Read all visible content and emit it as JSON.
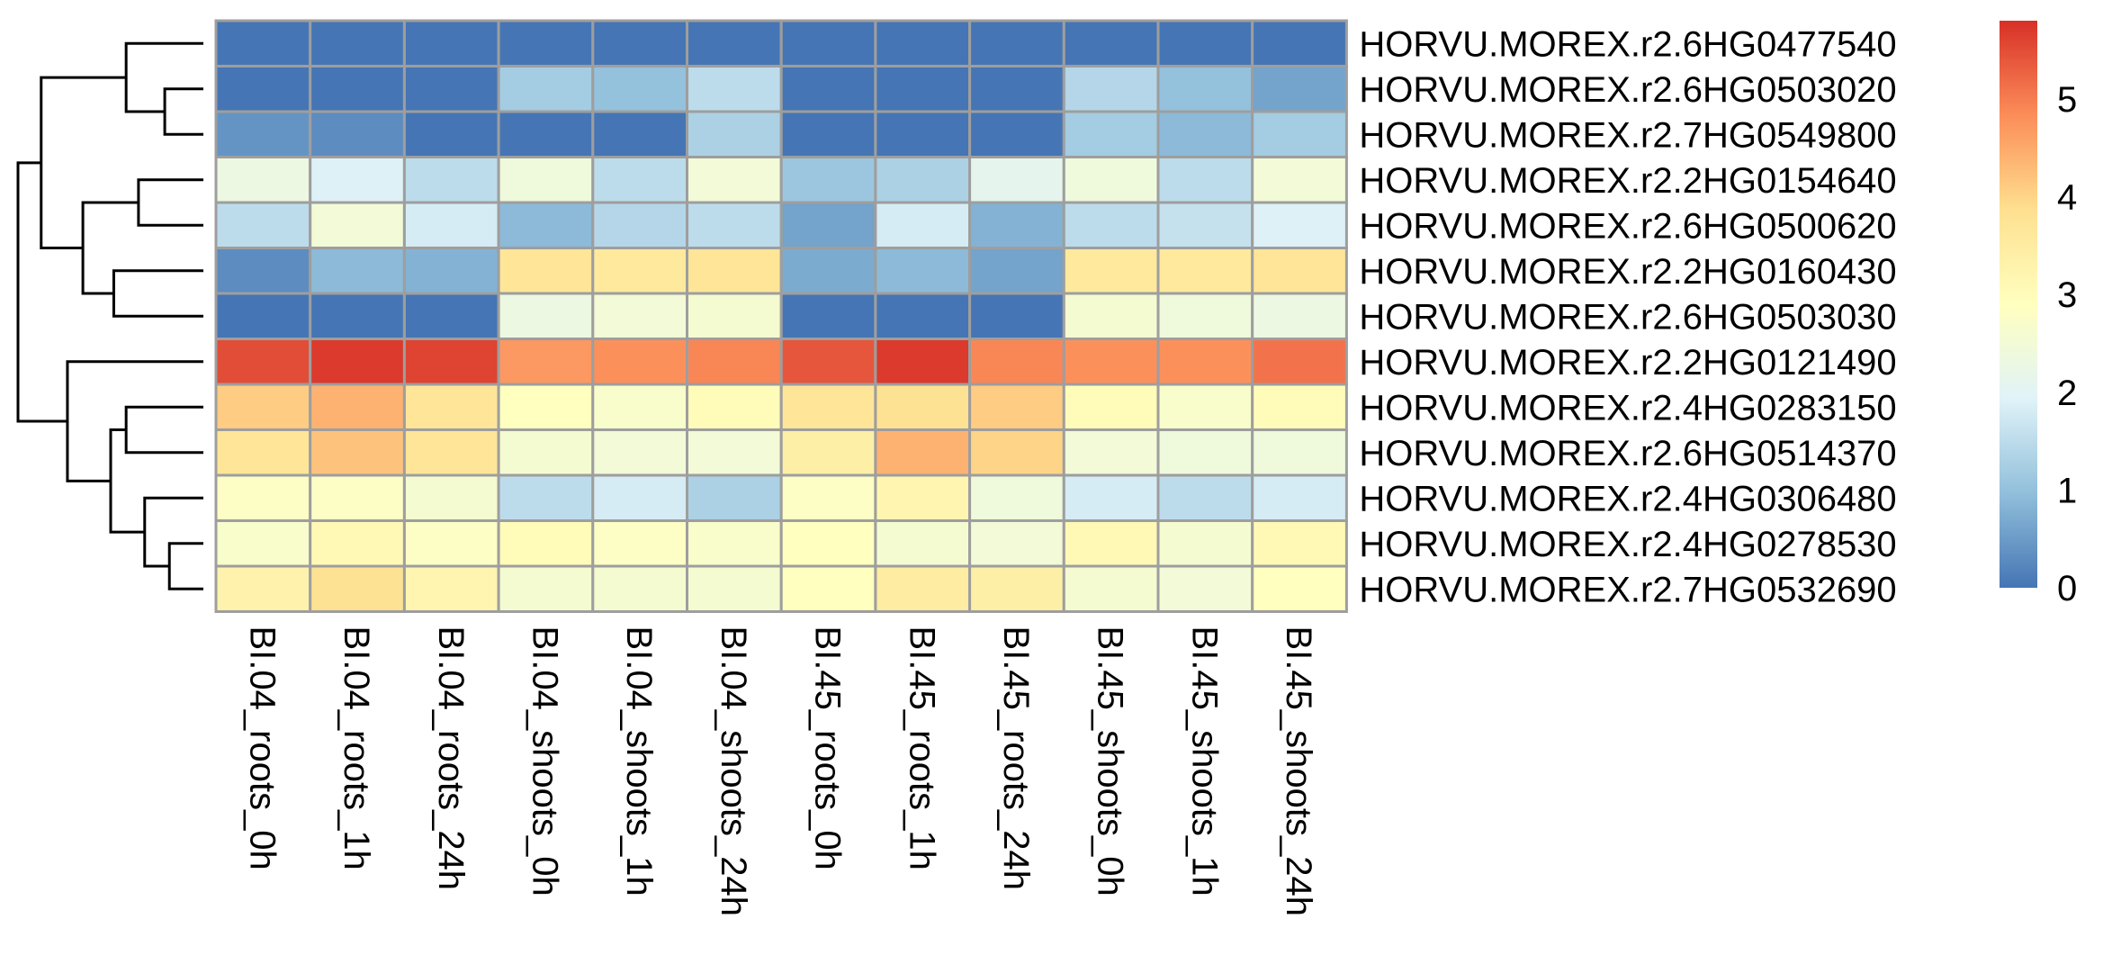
{
  "chart_data": {
    "type": "heatmap",
    "columns": [
      "BI.04_roots_0h",
      "BI.04_roots_1h",
      "BI.04_roots_24h",
      "BI.04_shoots_0h",
      "BI.04_shoots_1h",
      "BI.04_shoots_24h",
      "BI.45_roots_0h",
      "BI.45_roots_1h",
      "BI.45_roots_24h",
      "BI.45_shoots_0h",
      "BI.45_shoots_1h",
      "BI.45_shoots_24h"
    ],
    "rows": [
      {
        "name": "HORVU.MOREX.r2.6HG0477540",
        "values": [
          0.0,
          0.0,
          0.0,
          0.0,
          0.0,
          0.0,
          0.0,
          0.0,
          0.0,
          0.0,
          0.0,
          0.0
        ]
      },
      {
        "name": "HORVU.MOREX.r2.6HG0503020",
        "values": [
          0.0,
          0.0,
          0.0,
          1.2,
          1.0,
          1.5,
          0.0,
          0.0,
          0.0,
          1.4,
          1.0,
          0.6
        ]
      },
      {
        "name": "HORVU.MOREX.r2.7HG0549800",
        "values": [
          0.4,
          0.3,
          0.0,
          0.0,
          0.0,
          1.3,
          0.0,
          0.0,
          0.0,
          1.2,
          0.9,
          1.2
        ]
      },
      {
        "name": "HORVU.MOREX.r2.2HG0154640",
        "values": [
          2.3,
          1.9,
          1.5,
          2.4,
          1.5,
          2.5,
          1.1,
          1.3,
          2.1,
          2.4,
          1.5,
          2.5
        ]
      },
      {
        "name": "HORVU.MOREX.r2.6HG0500620",
        "values": [
          1.5,
          2.5,
          1.8,
          0.9,
          1.4,
          1.5,
          0.6,
          1.8,
          0.8,
          1.5,
          1.6,
          1.9
        ]
      },
      {
        "name": "HORVU.MOREX.r2.2HG0160430",
        "values": [
          0.3,
          0.9,
          0.8,
          3.7,
          3.6,
          3.7,
          0.7,
          0.9,
          0.6,
          3.6,
          3.6,
          3.7
        ]
      },
      {
        "name": "HORVU.MOREX.r2.6HG0503030",
        "values": [
          0.0,
          0.0,
          0.0,
          2.3,
          2.5,
          2.6,
          0.0,
          0.0,
          0.0,
          2.6,
          2.4,
          2.3
        ]
      },
      {
        "name": "HORVU.MOREX.r2.2HG0121490",
        "values": [
          5.5,
          5.7,
          5.6,
          4.7,
          4.8,
          4.9,
          5.4,
          5.7,
          4.9,
          4.8,
          4.8,
          5.1
        ]
      },
      {
        "name": "HORVU.MOREX.r2.4HG0283150",
        "values": [
          4.1,
          4.4,
          3.7,
          2.9,
          2.7,
          3.0,
          3.7,
          3.8,
          4.1,
          3.0,
          2.7,
          3.0
        ]
      },
      {
        "name": "HORVU.MOREX.r2.6HG0514370",
        "values": [
          3.7,
          4.2,
          3.7,
          2.6,
          2.5,
          2.5,
          3.4,
          4.4,
          4.0,
          2.5,
          2.4,
          2.4
        ]
      },
      {
        "name": "HORVU.MOREX.r2.4HG0306480",
        "values": [
          2.8,
          2.8,
          2.6,
          1.5,
          1.8,
          1.3,
          2.8,
          3.2,
          2.4,
          1.8,
          1.5,
          1.8
        ]
      },
      {
        "name": "HORVU.MOREX.r2.4HG0278530",
        "values": [
          2.7,
          3.1,
          2.8,
          3.0,
          2.8,
          2.7,
          2.9,
          2.6,
          2.5,
          3.1,
          2.6,
          3.1
        ]
      },
      {
        "name": "HORVU.MOREX.r2.7HG0532690",
        "values": [
          3.3,
          3.8,
          3.2,
          2.6,
          2.6,
          2.6,
          2.9,
          3.5,
          3.4,
          2.6,
          2.5,
          2.9
        ]
      }
    ],
    "color_scale": {
      "range": [
        0,
        5.8
      ],
      "ticks": [
        0,
        1,
        2,
        3,
        4,
        5
      ],
      "tick_labels": [
        "0",
        "1",
        "2",
        "3",
        "4",
        "5"
      ],
      "colors": [
        "#4575b4",
        "#91bfdb",
        "#e0f3f8",
        "#ffffbf",
        "#fee090",
        "#fc8d59",
        "#d73027"
      ],
      "legend_placement": "right"
    },
    "row_dendrogram": {
      "merges": [
        [
          1,
          2
        ],
        [
          0,
          13
        ],
        [
          3,
          4
        ],
        [
          5,
          6
        ],
        [
          15,
          16
        ],
        [
          11,
          12
        ],
        [
          10,
          18
        ],
        [
          8,
          9
        ],
        [
          19,
          20
        ],
        [
          7,
          21
        ],
        [
          14,
          17
        ],
        [
          23,
          22
        ]
      ],
      "heights": [
        0.25,
        0.5,
        0.42,
        0.58,
        0.78,
        0.22,
        0.38,
        0.5,
        0.6,
        0.88,
        1.05,
        1.2
      ]
    }
  }
}
